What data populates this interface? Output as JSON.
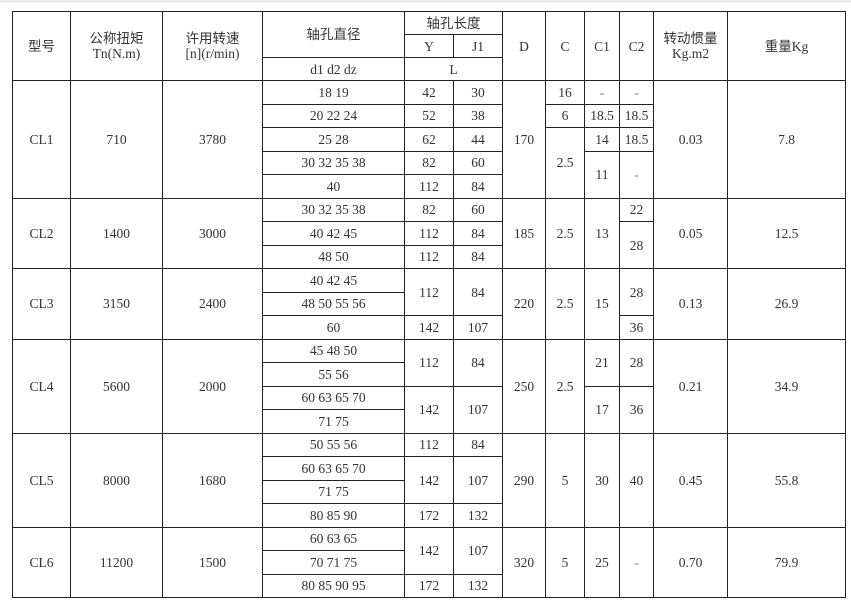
{
  "header": {
    "model": "型号",
    "torque": "公称扭矩",
    "torque_unit": "Tn(N.m)",
    "speed": "许用转速",
    "speed_unit": "[n](r/min)",
    "bore_diameter": "轴孔直径",
    "bore_diameter_sub": "d1 d2 dz",
    "bore_length": "轴孔长度",
    "y": "Y",
    "j1": "J1",
    "l": "L",
    "D": "D",
    "C": "C",
    "C1": "C1",
    "C2": "C2",
    "inertia": "转动惯量",
    "inertia_unit": "Kg.m2",
    "weight": "重量Kg"
  },
  "models": [
    {
      "model": "CL1",
      "tn": "710",
      "speed": "3780",
      "D": "170",
      "inertia": "0.03",
      "weight": "7.8",
      "d": [
        "18 19",
        "20 22 24",
        "25 28",
        "30 32 35 38",
        "40"
      ],
      "yj": [
        {
          "y": "42",
          "j1": "30",
          "span": 1
        },
        {
          "y": "52",
          "j1": "38",
          "span": 1
        },
        {
          "y": "62",
          "j1": "44",
          "span": 1
        },
        {
          "y": "82",
          "j1": "60",
          "span": 1
        },
        {
          "y": "112",
          "j1": "84",
          "span": 1
        }
      ],
      "c": [
        {
          "v": "16",
          "span": 1
        },
        {
          "v": "6",
          "span": 1
        },
        {
          "v": "2.5",
          "span": 3
        }
      ],
      "c1": [
        {
          "v": "-",
          "span": 1
        },
        {
          "v": "18.5",
          "span": 1
        },
        {
          "v": "14",
          "span": 1
        },
        {
          "v": "11",
          "span": 2
        }
      ],
      "c2": [
        {
          "v": "-",
          "span": 1
        },
        {
          "v": "18.5",
          "span": 1
        },
        {
          "v": "18.5",
          "span": 1
        },
        {
          "v": "-",
          "span": 2
        }
      ]
    },
    {
      "model": "CL2",
      "tn": "1400",
      "speed": "3000",
      "D": "185",
      "inertia": "0.05",
      "weight": "12.5",
      "d": [
        "30 32 35 38",
        "40 42 45",
        "48 50"
      ],
      "yj": [
        {
          "y": "82",
          "j1": "60",
          "span": 1
        },
        {
          "y": "112",
          "j1": "84",
          "span": 1
        },
        {
          "y": "112",
          "j1": "84",
          "span": 1
        }
      ],
      "c": [
        {
          "v": "2.5",
          "span": 3
        }
      ],
      "c1": [
        {
          "v": "13",
          "span": 3
        }
      ],
      "c2": [
        {
          "v": "22",
          "span": 1
        },
        {
          "v": "28",
          "span": 2
        }
      ]
    },
    {
      "model": "CL3",
      "tn": "3150",
      "speed": "2400",
      "D": "220",
      "inertia": "0.13",
      "weight": "26.9",
      "d": [
        "40 42 45",
        "48 50 55 56",
        "60"
      ],
      "yj": [
        {
          "y": "112",
          "j1": "84",
          "span": 2
        },
        {
          "y": "142",
          "j1": "107",
          "span": 1
        }
      ],
      "c": [
        {
          "v": "2.5",
          "span": 3
        }
      ],
      "c1": [
        {
          "v": "15",
          "span": 3
        }
      ],
      "c2": [
        {
          "v": "28",
          "span": 2
        },
        {
          "v": "36",
          "span": 1
        }
      ]
    },
    {
      "model": "CL4",
      "tn": "5600",
      "speed": "2000",
      "D": "250",
      "inertia": "0.21",
      "weight": "34.9",
      "d": [
        "45 48 50",
        "55 56",
        "60 63 65 70",
        "71 75"
      ],
      "yj": [
        {
          "y": "112",
          "j1": "84",
          "span": 2
        },
        {
          "y": "142",
          "j1": "107",
          "span": 2
        }
      ],
      "c": [
        {
          "v": "2.5",
          "span": 4
        }
      ],
      "c1": [
        {
          "v": "21",
          "span": 2
        },
        {
          "v": "17",
          "span": 2
        }
      ],
      "c2": [
        {
          "v": "28",
          "span": 2
        },
        {
          "v": "36",
          "span": 2
        }
      ]
    },
    {
      "model": "CL5",
      "tn": "8000",
      "speed": "1680",
      "D": "290",
      "inertia": "0.45",
      "weight": "55.8",
      "d": [
        "50 55 56",
        "60 63 65 70",
        "71 75",
        "80 85 90"
      ],
      "yj": [
        {
          "y": "112",
          "j1": "84",
          "span": 1
        },
        {
          "y": "142",
          "j1": "107",
          "span": 2
        },
        {
          "y": "172",
          "j1": "132",
          "span": 1
        }
      ],
      "c": [
        {
          "v": "5",
          "span": 4
        }
      ],
      "c1": [
        {
          "v": "30",
          "span": 4
        }
      ],
      "c2": [
        {
          "v": "40",
          "span": 4
        }
      ]
    },
    {
      "model": "CL6",
      "tn": "11200",
      "speed": "1500",
      "D": "320",
      "inertia": "0.70",
      "weight": "79.9",
      "d": [
        "60 63 65",
        "70 71 75",
        "80 85 90 95"
      ],
      "yj": [
        {
          "y": "142",
          "j1": "107",
          "span": 2
        },
        {
          "y": "172",
          "j1": "132",
          "span": 1
        }
      ],
      "c": [
        {
          "v": "5",
          "span": 3
        }
      ],
      "c1": [
        {
          "v": "25",
          "span": 3
        }
      ],
      "c2": [
        {
          "v": "-",
          "span": 3
        }
      ]
    }
  ]
}
